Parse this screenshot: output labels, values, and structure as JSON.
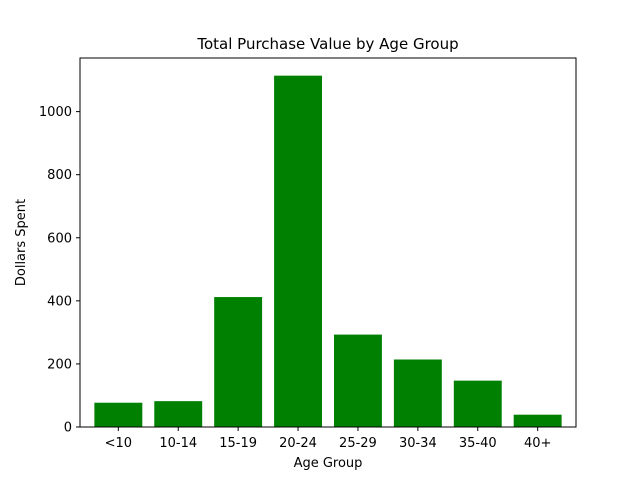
{
  "chart_data": {
    "type": "bar",
    "title": "Total Purchase Value by Age Group",
    "xlabel": "Age Group",
    "ylabel": "Dollars Spent",
    "categories": [
      "<10",
      "10-14",
      "15-19",
      "20-24",
      "25-29",
      "30-34",
      "35-40",
      "40+"
    ],
    "values": [
      77,
      82,
      412,
      1114,
      293,
      214,
      147,
      39
    ],
    "ylim": [
      0,
      1170
    ],
    "yticks": [
      0,
      200,
      400,
      600,
      800,
      1000
    ],
    "bar_color": "#008000",
    "grid": false
  }
}
